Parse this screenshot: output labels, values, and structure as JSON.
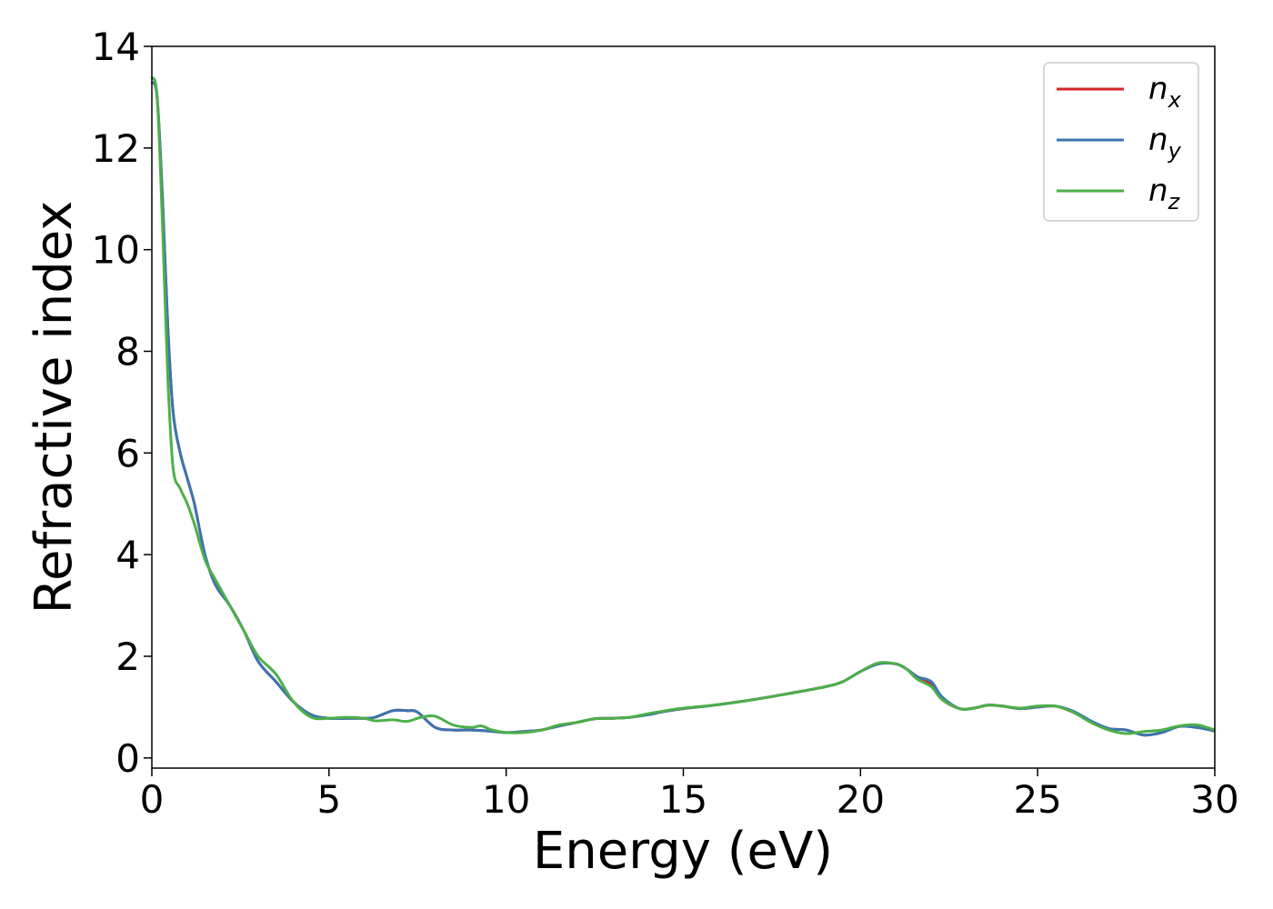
{
  "chart_data": {
    "type": "line",
    "xlabel": "Energy (eV)",
    "ylabel": "Refractive index",
    "xlim": [
      0,
      30
    ],
    "ylim": [
      -0.2,
      14
    ],
    "xticks": [
      0,
      5,
      10,
      15,
      20,
      25,
      30
    ],
    "yticks": [
      0,
      2,
      4,
      6,
      8,
      10,
      12,
      14
    ],
    "grid": false,
    "legend_position": "top-right",
    "series": [
      {
        "name": "n",
        "subscript": "x",
        "color": "#d62728",
        "points": [
          [
            0,
            13.3
          ],
          [
            0.15,
            13.0
          ],
          [
            0.3,
            11.0
          ],
          [
            0.45,
            8.5
          ],
          [
            0.6,
            6.8
          ],
          [
            0.8,
            6.0
          ],
          [
            1.0,
            5.5
          ],
          [
            1.2,
            5.0
          ],
          [
            1.5,
            4.0
          ],
          [
            1.8,
            3.4
          ],
          [
            2.2,
            3.0
          ],
          [
            2.6,
            2.5
          ],
          [
            3.0,
            1.9
          ],
          [
            3.5,
            1.5
          ],
          [
            4.0,
            1.1
          ],
          [
            4.5,
            0.85
          ],
          [
            5.0,
            0.78
          ],
          [
            5.5,
            0.78
          ],
          [
            6.0,
            0.78
          ],
          [
            6.3,
            0.8
          ],
          [
            6.8,
            0.93
          ],
          [
            7.2,
            0.93
          ],
          [
            7.5,
            0.9
          ],
          [
            8.0,
            0.6
          ],
          [
            8.5,
            0.55
          ],
          [
            9.0,
            0.55
          ],
          [
            9.5,
            0.53
          ],
          [
            10.0,
            0.5
          ],
          [
            10.5,
            0.52
          ],
          [
            11.0,
            0.55
          ],
          [
            11.5,
            0.63
          ],
          [
            12.0,
            0.7
          ],
          [
            12.5,
            0.77
          ],
          [
            13.0,
            0.78
          ],
          [
            13.5,
            0.8
          ],
          [
            14.0,
            0.85
          ],
          [
            14.5,
            0.92
          ],
          [
            15.0,
            0.97
          ],
          [
            16.0,
            1.05
          ],
          [
            17.0,
            1.15
          ],
          [
            18.0,
            1.27
          ],
          [
            19.0,
            1.4
          ],
          [
            19.5,
            1.5
          ],
          [
            20.0,
            1.7
          ],
          [
            20.5,
            1.85
          ],
          [
            21.0,
            1.85
          ],
          [
            21.3,
            1.75
          ],
          [
            21.6,
            1.6
          ],
          [
            22.0,
            1.45
          ],
          [
            22.3,
            1.15
          ],
          [
            22.8,
            0.97
          ],
          [
            23.2,
            0.98
          ],
          [
            23.6,
            1.04
          ],
          [
            24.0,
            1.02
          ],
          [
            24.5,
            0.97
          ],
          [
            25.0,
            1.0
          ],
          [
            25.5,
            1.02
          ],
          [
            26.0,
            0.9
          ],
          [
            26.5,
            0.72
          ],
          [
            27.0,
            0.58
          ],
          [
            27.5,
            0.55
          ],
          [
            28.0,
            0.45
          ],
          [
            28.5,
            0.5
          ],
          [
            29.0,
            0.62
          ],
          [
            29.5,
            0.6
          ],
          [
            30.0,
            0.53
          ]
        ]
      },
      {
        "name": "n",
        "subscript": "y",
        "color": "#3a75b0",
        "points": [
          [
            0,
            13.3
          ],
          [
            0.15,
            13.0
          ],
          [
            0.3,
            11.0
          ],
          [
            0.45,
            8.5
          ],
          [
            0.6,
            6.8
          ],
          [
            0.8,
            6.0
          ],
          [
            1.0,
            5.5
          ],
          [
            1.2,
            5.0
          ],
          [
            1.5,
            4.0
          ],
          [
            1.8,
            3.4
          ],
          [
            2.2,
            3.0
          ],
          [
            2.6,
            2.5
          ],
          [
            3.0,
            1.9
          ],
          [
            3.5,
            1.5
          ],
          [
            4.0,
            1.1
          ],
          [
            4.5,
            0.85
          ],
          [
            5.0,
            0.78
          ],
          [
            5.5,
            0.78
          ],
          [
            6.0,
            0.78
          ],
          [
            6.3,
            0.8
          ],
          [
            6.8,
            0.93
          ],
          [
            7.2,
            0.93
          ],
          [
            7.5,
            0.9
          ],
          [
            8.0,
            0.6
          ],
          [
            8.5,
            0.55
          ],
          [
            9.0,
            0.55
          ],
          [
            9.5,
            0.53
          ],
          [
            10.0,
            0.5
          ],
          [
            10.5,
            0.52
          ],
          [
            11.0,
            0.55
          ],
          [
            11.5,
            0.63
          ],
          [
            12.0,
            0.7
          ],
          [
            12.5,
            0.77
          ],
          [
            13.0,
            0.78
          ],
          [
            13.5,
            0.8
          ],
          [
            14.0,
            0.85
          ],
          [
            14.5,
            0.92
          ],
          [
            15.0,
            0.97
          ],
          [
            16.0,
            1.05
          ],
          [
            17.0,
            1.15
          ],
          [
            18.0,
            1.27
          ],
          [
            19.0,
            1.4
          ],
          [
            19.5,
            1.5
          ],
          [
            20.0,
            1.7
          ],
          [
            20.5,
            1.85
          ],
          [
            21.0,
            1.85
          ],
          [
            21.3,
            1.75
          ],
          [
            21.6,
            1.6
          ],
          [
            22.0,
            1.5
          ],
          [
            22.3,
            1.2
          ],
          [
            22.8,
            0.97
          ],
          [
            23.2,
            0.98
          ],
          [
            23.6,
            1.04
          ],
          [
            24.0,
            1.02
          ],
          [
            24.5,
            0.97
          ],
          [
            25.0,
            1.0
          ],
          [
            25.5,
            1.02
          ],
          [
            26.0,
            0.92
          ],
          [
            26.5,
            0.73
          ],
          [
            27.0,
            0.58
          ],
          [
            27.5,
            0.55
          ],
          [
            28.0,
            0.45
          ],
          [
            28.5,
            0.5
          ],
          [
            29.0,
            0.62
          ],
          [
            29.5,
            0.6
          ],
          [
            30.0,
            0.53
          ]
        ]
      },
      {
        "name": "n",
        "subscript": "z",
        "color": "#4daf4a",
        "points": [
          [
            0,
            13.4
          ],
          [
            0.15,
            13.0
          ],
          [
            0.3,
            10.5
          ],
          [
            0.45,
            7.5
          ],
          [
            0.6,
            5.7
          ],
          [
            0.8,
            5.3
          ],
          [
            1.0,
            5.0
          ],
          [
            1.2,
            4.6
          ],
          [
            1.5,
            3.9
          ],
          [
            1.8,
            3.5
          ],
          [
            2.2,
            3.0
          ],
          [
            2.6,
            2.5
          ],
          [
            3.0,
            2.0
          ],
          [
            3.5,
            1.65
          ],
          [
            4.0,
            1.1
          ],
          [
            4.5,
            0.8
          ],
          [
            5.0,
            0.78
          ],
          [
            5.5,
            0.8
          ],
          [
            6.0,
            0.78
          ],
          [
            6.3,
            0.73
          ],
          [
            6.8,
            0.75
          ],
          [
            7.2,
            0.72
          ],
          [
            7.6,
            0.8
          ],
          [
            8.0,
            0.82
          ],
          [
            8.5,
            0.65
          ],
          [
            9.0,
            0.6
          ],
          [
            9.3,
            0.63
          ],
          [
            9.6,
            0.55
          ],
          [
            10.0,
            0.5
          ],
          [
            10.5,
            0.5
          ],
          [
            11.0,
            0.55
          ],
          [
            11.5,
            0.65
          ],
          [
            12.0,
            0.7
          ],
          [
            12.5,
            0.77
          ],
          [
            13.0,
            0.78
          ],
          [
            13.5,
            0.8
          ],
          [
            14.0,
            0.87
          ],
          [
            14.5,
            0.93
          ],
          [
            15.0,
            0.98
          ],
          [
            16.0,
            1.05
          ],
          [
            17.0,
            1.15
          ],
          [
            18.0,
            1.27
          ],
          [
            19.0,
            1.4
          ],
          [
            19.5,
            1.5
          ],
          [
            20.0,
            1.7
          ],
          [
            20.5,
            1.87
          ],
          [
            21.0,
            1.85
          ],
          [
            21.3,
            1.75
          ],
          [
            21.6,
            1.55
          ],
          [
            22.0,
            1.4
          ],
          [
            22.3,
            1.15
          ],
          [
            22.8,
            0.97
          ],
          [
            23.2,
            0.98
          ],
          [
            23.6,
            1.04
          ],
          [
            24.0,
            1.02
          ],
          [
            24.5,
            0.98
          ],
          [
            25.0,
            1.02
          ],
          [
            25.5,
            1.02
          ],
          [
            26.0,
            0.9
          ],
          [
            26.5,
            0.7
          ],
          [
            27.0,
            0.55
          ],
          [
            27.5,
            0.48
          ],
          [
            28.0,
            0.52
          ],
          [
            28.5,
            0.55
          ],
          [
            29.0,
            0.63
          ],
          [
            29.5,
            0.65
          ],
          [
            30.0,
            0.55
          ]
        ]
      }
    ]
  }
}
